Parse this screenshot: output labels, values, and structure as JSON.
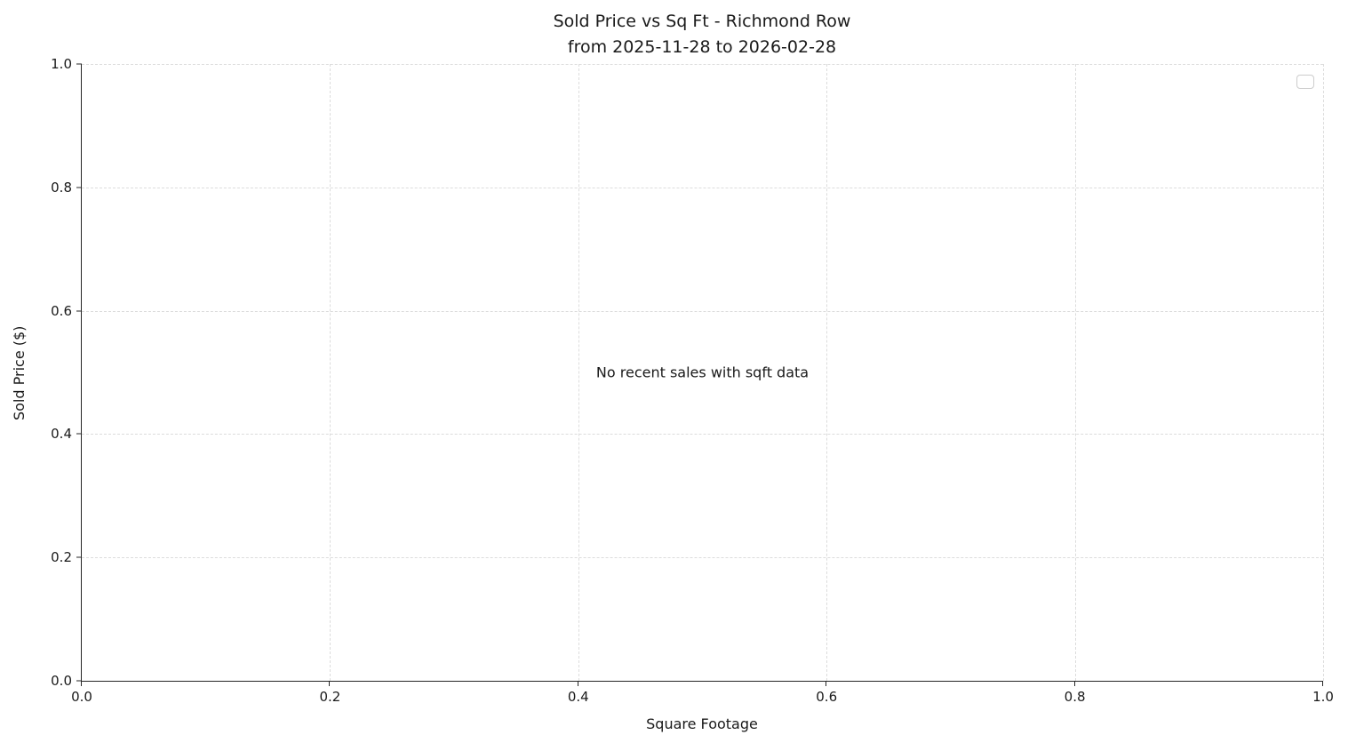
{
  "chart_data": {
    "type": "scatter",
    "title": "Sold Price vs Sq Ft - Richmond Row",
    "subtitle": "from 2025-11-28 to 2026-02-28",
    "xlabel": "Square Footage",
    "ylabel": "Sold Price ($)",
    "xlim": [
      0.0,
      1.0
    ],
    "ylim": [
      0.0,
      1.0
    ],
    "xticks": [
      "0.0",
      "0.2",
      "0.4",
      "0.6",
      "0.8",
      "1.0"
    ],
    "yticks": [
      "0.0",
      "0.2",
      "0.4",
      "0.6",
      "0.8",
      "1.0"
    ],
    "grid": true,
    "grid_style": "dashed",
    "series": [],
    "points": [],
    "legend_position": "upper right",
    "legend_entries": [],
    "annotation": "No recent sales with sqft data"
  },
  "colors": {
    "background": "#ffffff",
    "grid": "#dcdcdc",
    "spine": "#262626",
    "text": "#1a1a1a",
    "legend_border": "#cccccc"
  }
}
